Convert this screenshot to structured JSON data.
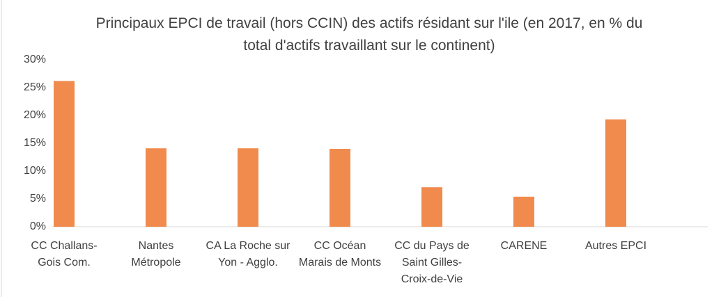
{
  "chart_data": {
    "type": "bar",
    "title": "Principaux EPCI de travail (hors CCIN) des actifs résidant sur l'ile (en 2017, en % du total d'actifs travaillant sur le continent)",
    "categories": [
      "CC Challans-Gois Com.",
      "Nantes Métropole",
      "CA La Roche sur Yon - Agglo.",
      "CC Océan Marais de Monts",
      "CC du Pays de Saint Gilles-Croix-de-Vie",
      "CARENE",
      "Autres EPCI"
    ],
    "values": [
      26.2,
      14.1,
      14.1,
      14.0,
      7.1,
      5.4,
      19.3
    ],
    "color": "#f08b4d",
    "ylim": [
      0,
      30
    ],
    "yticks": [
      {
        "value": 0,
        "label": "0%"
      },
      {
        "value": 5,
        "label": "5%"
      },
      {
        "value": 10,
        "label": "10%"
      },
      {
        "value": 15,
        "label": "15%"
      },
      {
        "value": 20,
        "label": "20%"
      },
      {
        "value": 25,
        "label": "25%"
      },
      {
        "value": 30,
        "label": "30%"
      }
    ],
    "grid": false
  }
}
